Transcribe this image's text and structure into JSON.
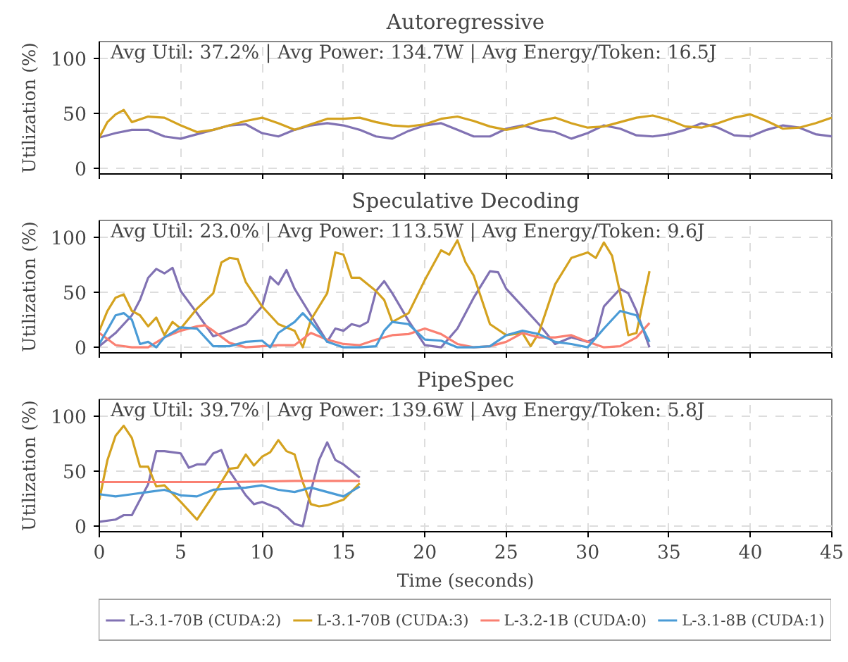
{
  "chart_data": [
    {
      "type": "line",
      "title": "Autoregressive",
      "ylabel": "Utilization (%)",
      "annotations": [
        "Avg Util: 37.2% | Avg Power: 134.7W | Avg Energy/Token: 16.5J"
      ],
      "xlim": [
        0,
        45
      ],
      "xticks": [
        0,
        5,
        10,
        15,
        20,
        25,
        30,
        35,
        40,
        45
      ],
      "ylim": [
        -5,
        115
      ],
      "yticks": [
        0,
        50,
        100
      ],
      "grid": true,
      "tick_labels": "y",
      "line_style": "solid",
      "series": [
        {
          "color": "#8172b3",
          "x": [
            0,
            1,
            2,
            3,
            4,
            5,
            6,
            7,
            8,
            9,
            10,
            11,
            12,
            13,
            14,
            15,
            16,
            17,
            18,
            19,
            20,
            21,
            22,
            23,
            24,
            25,
            26,
            27,
            28,
            29,
            30,
            31,
            32,
            33,
            34,
            35,
            36,
            37,
            38,
            39,
            40,
            41,
            42,
            43,
            44,
            45
          ],
          "values": [
            28,
            32,
            35,
            35,
            29,
            27,
            31,
            35,
            39,
            40,
            32,
            29,
            35,
            39,
            41,
            39,
            35,
            29,
            27,
            34,
            39,
            41,
            35,
            29,
            29,
            36,
            39,
            35,
            33,
            27,
            32,
            39,
            36,
            30,
            29,
            31,
            35,
            41,
            37,
            30,
            29,
            35,
            39,
            37,
            31,
            29
          ]
        },
        {
          "color": "#d4a21f",
          "x": [
            0,
            0.5,
            1,
            1.5,
            2,
            3,
            4,
            5,
            6,
            7,
            8,
            9,
            10,
            11,
            12,
            13,
            14,
            15,
            16,
            17,
            18,
            19,
            20,
            21,
            22,
            23,
            24,
            25,
            26,
            27,
            28,
            29,
            30,
            31,
            32,
            33,
            34,
            35,
            36,
            37,
            38,
            39,
            40,
            41,
            42,
            43,
            44,
            45
          ],
          "values": [
            28,
            42,
            49,
            53,
            42,
            47,
            46,
            39,
            33,
            35,
            39,
            43,
            46,
            41,
            35,
            40,
            45,
            45,
            46,
            42,
            39,
            38,
            40,
            45,
            47,
            43,
            38,
            35,
            38,
            43,
            46,
            41,
            37,
            38,
            42,
            46,
            48,
            44,
            38,
            37,
            41,
            46,
            49,
            43,
            36,
            37,
            41,
            46
          ]
        }
      ]
    },
    {
      "type": "line",
      "title": "Speculative Decoding",
      "ylabel": "Utilization (%)",
      "annotations": [
        "Avg Util: 23.0% | Avg Power: 113.5W | Avg Energy/Token: 9.6J"
      ],
      "xlim": [
        0,
        45
      ],
      "xticks": [
        0,
        5,
        10,
        15,
        20,
        25,
        30,
        35,
        40,
        45
      ],
      "ylim": [
        -5,
        115
      ],
      "yticks": [
        0,
        50,
        100
      ],
      "grid": true,
      "tick_labels": "y",
      "line_style": "solid",
      "series": [
        {
          "color": "#8172b3",
          "x": [
            0,
            1,
            2,
            2.5,
            3,
            3.5,
            4,
            4.5,
            5,
            6,
            7,
            8,
            9,
            10,
            10.5,
            11,
            11.5,
            12,
            13,
            14,
            14.5,
            15,
            15.5,
            16,
            16.5,
            17,
            17.5,
            18,
            19,
            20,
            20.5,
            21,
            22,
            23,
            24,
            24.5,
            25,
            26,
            27,
            28,
            29,
            30,
            30.5,
            31,
            32,
            32.5,
            33,
            33.8
          ],
          "values": [
            1,
            13,
            29,
            43,
            63,
            71,
            67,
            72,
            51,
            31,
            10,
            15,
            21,
            37,
            64,
            57,
            70,
            53,
            29,
            5,
            17,
            15,
            21,
            19,
            23,
            51,
            60,
            49,
            24,
            2,
            1,
            0,
            17,
            45,
            69,
            68,
            53,
            37,
            21,
            3,
            9,
            5,
            9,
            37,
            53,
            49,
            33,
            0
          ]
        },
        {
          "color": "#d4a21f",
          "x": [
            0,
            0.5,
            1,
            1.5,
            2,
            2.5,
            3,
            3.5,
            4,
            4.5,
            5,
            6,
            7,
            7.5,
            8,
            8.5,
            9,
            10,
            11,
            12,
            12.5,
            13,
            14,
            14.5,
            15,
            15.5,
            16,
            17,
            17.5,
            18,
            19,
            20,
            21,
            21.5,
            22,
            22.5,
            23,
            24,
            25,
            26,
            26.5,
            27,
            28,
            29,
            30,
            30.5,
            31,
            31.5,
            32,
            32.5,
            33,
            33.8
          ],
          "values": [
            15,
            33,
            45,
            48,
            33,
            29,
            19,
            27,
            11,
            23,
            17,
            35,
            49,
            77,
            81,
            80,
            59,
            37,
            21,
            15,
            0,
            25,
            49,
            86,
            84,
            63,
            63,
            51,
            43,
            23,
            31,
            61,
            88,
            84,
            97,
            77,
            65,
            21,
            11,
            13,
            1,
            13,
            57,
            81,
            86,
            81,
            95,
            83,
            49,
            11,
            13,
            69
          ]
        },
        {
          "color": "#fa8072",
          "x": [
            0,
            1,
            2,
            3,
            4,
            5,
            6,
            6.5,
            7,
            8,
            9,
            10,
            11,
            12,
            13,
            14,
            15,
            16,
            17,
            18,
            19,
            20,
            21,
            22,
            23,
            24,
            25,
            26,
            27,
            28,
            29,
            30,
            31,
            32,
            33,
            33.8
          ],
          "values": [
            13,
            2,
            0,
            0,
            9,
            15,
            19,
            20,
            15,
            4,
            0,
            1,
            2,
            2,
            13,
            7,
            3,
            2,
            7,
            11,
            12,
            17,
            12,
            3,
            0,
            1,
            5,
            13,
            9,
            9,
            11,
            5,
            0,
            1,
            9,
            22
          ]
        },
        {
          "color": "#4a9bd6",
          "x": [
            0,
            1,
            1.5,
            2,
            2.5,
            3,
            3.5,
            4,
            5,
            6,
            7,
            8,
            9,
            10,
            10.5,
            11,
            12,
            12.5,
            13,
            14,
            15,
            16,
            17,
            17.5,
            18,
            19,
            20,
            21,
            22,
            23,
            24,
            25,
            26,
            27,
            28,
            29,
            30,
            31,
            32,
            33,
            33.8
          ],
          "values": [
            3,
            29,
            31,
            25,
            3,
            5,
            0,
            9,
            18,
            17,
            1,
            1,
            5,
            6,
            0,
            13,
            23,
            31,
            23,
            5,
            0,
            0,
            1,
            15,
            23,
            21,
            7,
            6,
            0,
            0,
            1,
            11,
            15,
            12,
            5,
            3,
            0,
            17,
            33,
            29,
            5
          ]
        }
      ]
    },
    {
      "type": "line",
      "title": "PipeSpec",
      "xlabel": "Time (seconds)",
      "ylabel": "Utilization (%)",
      "annotations": [
        "Avg Util: 39.7% | Avg Power: 139.6W | Avg Energy/Token: 5.8J"
      ],
      "xlim": [
        0,
        45
      ],
      "xticks": [
        0,
        5,
        10,
        15,
        20,
        25,
        30,
        35,
        40,
        45
      ],
      "ylim": [
        -5,
        115
      ],
      "yticks": [
        0,
        50,
        100
      ],
      "grid": true,
      "legend": "bottom",
      "line_style": "solid",
      "series": [
        {
          "name": "L-3.1-70B (CUDA:2)",
          "color": "#8172b3",
          "x": [
            0,
            1,
            1.5,
            2,
            3,
            3.5,
            4,
            5,
            5.5,
            6,
            6.5,
            7,
            7.5,
            8,
            9,
            9.5,
            10,
            11,
            12,
            12.5,
            13,
            13.5,
            14,
            14.5,
            15,
            16
          ],
          "values": [
            4,
            6,
            10,
            10,
            38,
            68,
            68,
            66,
            53,
            56,
            56,
            66,
            69,
            50,
            28,
            20,
            22,
            16,
            2,
            0,
            32,
            60,
            76,
            60,
            56,
            44
          ]
        },
        {
          "name": "L-3.1-70B (CUDA:3)",
          "color": "#d4a21f",
          "x": [
            0,
            0.5,
            1,
            1.5,
            2,
            2.5,
            3,
            3.5,
            4,
            5,
            6,
            7,
            8,
            8.5,
            9,
            9.5,
            10,
            10.5,
            11,
            11.5,
            12,
            12.5,
            13,
            13.5,
            14,
            15,
            16
          ],
          "values": [
            24,
            60,
            82,
            91,
            80,
            54,
            54,
            36,
            37,
            22,
            6,
            28,
            52,
            53,
            65,
            55,
            63,
            67,
            78,
            68,
            65,
            40,
            20,
            18,
            19,
            24,
            39
          ]
        },
        {
          "name": "L-3.2-1B (CUDA:0)",
          "color": "#fa8072",
          "x": [
            0,
            4,
            8,
            12,
            16
          ],
          "values": [
            40,
            40,
            40,
            41,
            41
          ]
        },
        {
          "name": "L-3.1-8B (CUDA:1)",
          "color": "#4a9bd6",
          "x": [
            0,
            1,
            2,
            3,
            4,
            5,
            6,
            7,
            8,
            9,
            10,
            11,
            12,
            13,
            14,
            15,
            16
          ],
          "values": [
            29,
            27,
            29,
            31,
            33,
            28,
            27,
            33,
            34,
            35,
            37,
            33,
            31,
            35,
            31,
            27,
            36
          ]
        }
      ]
    }
  ]
}
